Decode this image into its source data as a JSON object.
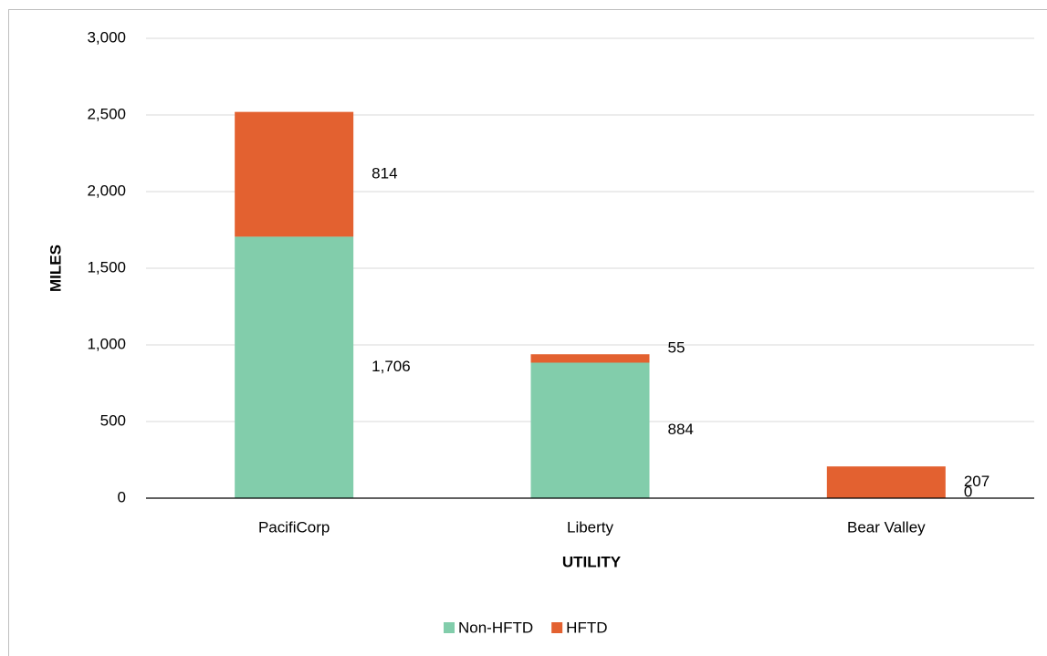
{
  "chart_data": {
    "type": "bar",
    "stacked": true,
    "x_label": "UTILITY",
    "y_label": "MILES",
    "categories": [
      "PacifiCorp",
      "Liberty",
      "Bear Valley"
    ],
    "series": [
      {
        "name": "Non-HFTD",
        "color": "#82cdab",
        "values": [
          1706,
          884,
          0
        ],
        "value_labels": [
          "1,706",
          "884",
          "0"
        ]
      },
      {
        "name": "HFTD",
        "color": "#e36130",
        "values": [
          814,
          55,
          207
        ],
        "value_labels": [
          "814",
          "55",
          "207"
        ]
      }
    ],
    "ylim": [
      0,
      3000
    ],
    "yticks": [
      0,
      500,
      {
        "value": 1000,
        "label": "1,000"
      },
      {
        "value": 1500,
        "label": "1,500"
      },
      {
        "value": 2000,
        "label": "2,000"
      },
      {
        "value": 2500,
        "label": "2,500"
      },
      {
        "value": 3000,
        "label": "3,000"
      }
    ],
    "grid": true,
    "legend": "bottom"
  }
}
